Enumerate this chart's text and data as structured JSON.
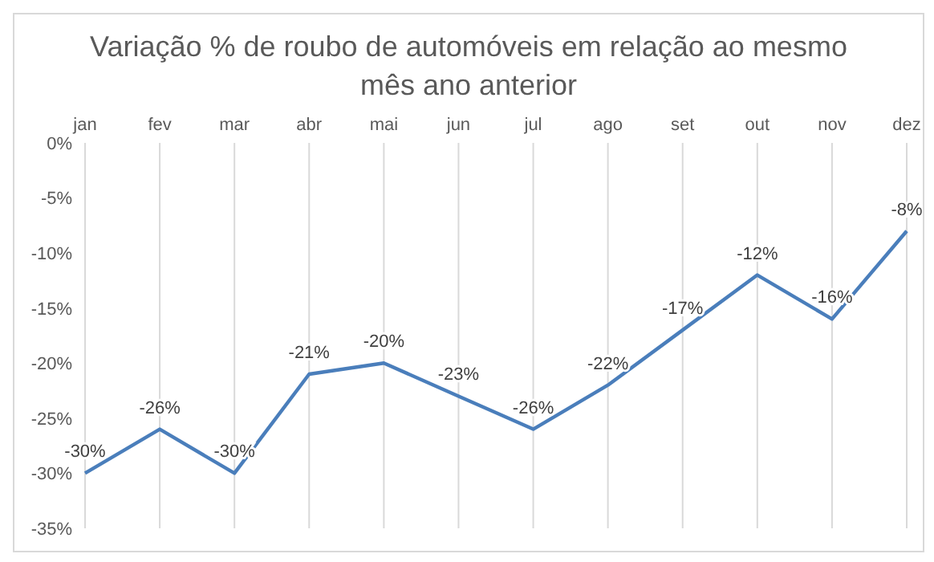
{
  "chart_data": {
    "type": "line",
    "title": "Variação % de roubo de automóveis em relação ao mesmo mês ano anterior",
    "categories": [
      "jan",
      "fev",
      "mar",
      "abr",
      "mai",
      "jun",
      "jul",
      "ago",
      "set",
      "out",
      "nov",
      "dez"
    ],
    "values": [
      -30,
      -26,
      -30,
      -21,
      -20,
      -23,
      -26,
      -22,
      -17,
      -12,
      -16,
      -8
    ],
    "value_labels": [
      "-30%",
      "-26%",
      "-30%",
      "-21%",
      "-20%",
      "-23%",
      "-26%",
      "-22%",
      "-17%",
      "-12%",
      "-16%",
      "-8%"
    ],
    "color": "#4a7ebb",
    "ylim": [
      -35,
      0
    ],
    "yticks": [
      {
        "value": 0,
        "label": "0%"
      },
      {
        "value": -5,
        "label": "-5%"
      },
      {
        "value": -10,
        "label": "-10%"
      },
      {
        "value": -15,
        "label": "-15%"
      },
      {
        "value": -20,
        "label": "-20%"
      },
      {
        "value": -25,
        "label": "-25%"
      },
      {
        "value": -30,
        "label": "-30%"
      },
      {
        "value": -35,
        "label": "-35%"
      }
    ],
    "grid": "x",
    "marker": "none",
    "line_style": "solid"
  }
}
